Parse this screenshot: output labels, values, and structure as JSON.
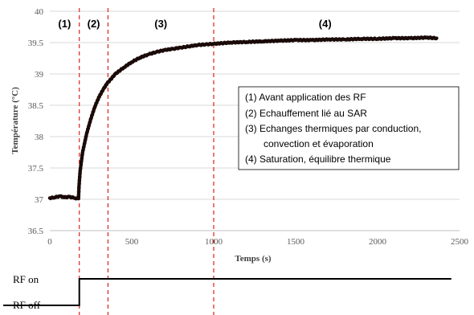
{
  "chart_data": {
    "type": "scatter",
    "xlabel": "Temps (s)",
    "ylabel": "Température (°C)",
    "xlim": [
      0,
      2500
    ],
    "ylim": [
      36.5,
      40
    ],
    "x_ticks": [
      "0",
      "500",
      "1000",
      "1500",
      "2000",
      "2500"
    ],
    "y_ticks": [
      "36.5",
      "37",
      "37.5",
      "38",
      "38.5",
      "39",
      "39.5",
      "40"
    ],
    "grid": "horizontal",
    "marker_color": "#1a0a08",
    "series": [
      {
        "x": [
          0,
          30,
          60,
          90,
          120,
          150,
          175,
          178,
          185,
          200,
          225,
          250,
          275,
          300,
          325,
          350,
          400,
          450,
          500,
          550,
          600,
          650,
          700,
          750,
          800,
          850,
          900,
          950,
          1000,
          1100,
          1200,
          1300,
          1400,
          1500,
          1600,
          1700,
          1800,
          1900,
          2000,
          2100,
          2200,
          2300,
          2360
        ],
        "y": [
          37.02,
          37.03,
          37.05,
          37.03,
          37.04,
          37.02,
          37.01,
          37.2,
          37.45,
          37.75,
          38.05,
          38.28,
          38.48,
          38.63,
          38.75,
          38.85,
          39.0,
          39.1,
          39.19,
          39.26,
          39.31,
          39.35,
          39.38,
          39.4,
          39.42,
          39.44,
          39.46,
          39.47,
          39.48,
          39.5,
          39.51,
          39.52,
          39.53,
          39.54,
          39.54,
          39.55,
          39.55,
          39.56,
          39.56,
          39.57,
          39.57,
          39.58,
          39.57
        ]
      }
    ],
    "phase_boundaries": [
      180,
      355,
      1000
    ],
    "boundary_color": "#e02020",
    "phase_labels": [
      "(1)",
      "(2)",
      "(3)",
      "(4)"
    ],
    "legend_items": [
      "(1)  Avant application des RF",
      "(2)  Echauffement lié au SAR",
      "(3)  Echanges thermiques par conduction,",
      "convection et évaporation",
      "(4)  Saturation, équilibre thermique"
    ],
    "rf_signal": {
      "labels": [
        "RF on",
        "RF off"
      ],
      "switch_time": 180,
      "end_time": 2450
    }
  }
}
